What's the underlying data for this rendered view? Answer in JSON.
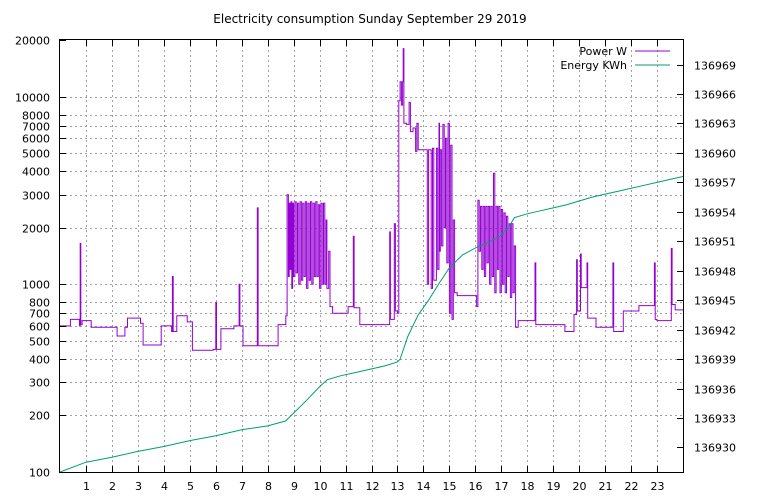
{
  "chart_data": {
    "type": "line",
    "title": "Electricity consumption Sunday September 29 2019",
    "xlabel": "",
    "ylabel": "",
    "grid": true,
    "legend_position": "top-right",
    "x_axis": {
      "range": [
        0,
        24
      ],
      "tick_values": [
        1,
        2,
        3,
        4,
        5,
        6,
        7,
        8,
        9,
        10,
        11,
        12,
        13,
        14,
        15,
        16,
        17,
        18,
        19,
        20,
        21,
        22,
        23
      ],
      "tick_labels": [
        "1",
        "2",
        "3",
        "4",
        "5",
        "6",
        "7",
        "8",
        "9",
        "10",
        "11",
        "12",
        "13",
        "14",
        "15",
        "16",
        "17",
        "18",
        "19",
        "20",
        "21",
        "22",
        "23"
      ]
    },
    "y_axis": {
      "scale": "log",
      "range": [
        100,
        20000
      ],
      "tick_values": [
        100,
        200,
        300,
        400,
        500,
        600,
        700,
        800,
        1000,
        2000,
        3000,
        4000,
        5000,
        6000,
        7000,
        8000,
        10000,
        20000
      ],
      "tick_labels": [
        "100",
        "200",
        "300",
        "400",
        "500",
        "600",
        "700",
        "800",
        "1000",
        "2000",
        "3000",
        "4000",
        "5000",
        "6000",
        "7000",
        "8000",
        "10000",
        "20000"
      ]
    },
    "y2_axis": {
      "scale": "linear",
      "range": [
        136927.5,
        136971.5
      ],
      "tick_values": [
        136930,
        136933,
        136936,
        136939,
        136942,
        136945,
        136948,
        136951,
        136954,
        136957,
        136960,
        136963,
        136966,
        136969
      ],
      "tick_labels": [
        "136930",
        "136933",
        "136936",
        "136939",
        "136942",
        "136945",
        "136948",
        "136951",
        "136954",
        "136957",
        "136960",
        "136963",
        "136966",
        "136969"
      ]
    },
    "series": [
      {
        "name": "Power W",
        "color": "#9400d3",
        "axis": "y",
        "step": true,
        "points": [
          [
            0.0,
            600
          ],
          [
            0.4,
            650
          ],
          [
            0.75,
            600
          ],
          [
            0.78,
            1650
          ],
          [
            0.8,
            610
          ],
          [
            0.85,
            640
          ],
          [
            1.2,
            590
          ],
          [
            2.2,
            530
          ],
          [
            2.5,
            590
          ],
          [
            2.6,
            660
          ],
          [
            3.1,
            620
          ],
          [
            3.2,
            475
          ],
          [
            3.9,
            600
          ],
          [
            4.3,
            560
          ],
          [
            4.33,
            1100
          ],
          [
            4.36,
            560
          ],
          [
            4.5,
            680
          ],
          [
            4.9,
            630
          ],
          [
            5.1,
            445
          ],
          [
            5.9,
            450
          ],
          [
            6.0,
            800
          ],
          [
            6.03,
            450
          ],
          [
            6.2,
            580
          ],
          [
            6.7,
            600
          ],
          [
            6.9,
            1000
          ],
          [
            6.93,
            600
          ],
          [
            7.05,
            470
          ],
          [
            7.4,
            470
          ],
          [
            7.6,
            2550
          ],
          [
            7.63,
            470
          ],
          [
            8.0,
            470
          ],
          [
            8.4,
            610
          ],
          [
            8.7,
            680
          ],
          [
            8.75,
            3000
          ],
          [
            8.8,
            1100
          ],
          [
            8.83,
            2700
          ],
          [
            8.86,
            1200
          ],
          [
            8.9,
            2750
          ],
          [
            8.93,
            950
          ],
          [
            8.96,
            2700
          ],
          [
            9.0,
            1100
          ],
          [
            9.05,
            2750
          ],
          [
            9.1,
            1150
          ],
          [
            9.15,
            2700
          ],
          [
            9.2,
            1000
          ],
          [
            9.25,
            2750
          ],
          [
            9.3,
            1050
          ],
          [
            9.35,
            2700
          ],
          [
            9.4,
            1100
          ],
          [
            9.45,
            2750
          ],
          [
            9.5,
            950
          ],
          [
            9.55,
            2700
          ],
          [
            9.6,
            1050
          ],
          [
            9.65,
            2750
          ],
          [
            9.7,
            1000
          ],
          [
            9.75,
            2700
          ],
          [
            9.8,
            1100
          ],
          [
            9.85,
            2750
          ],
          [
            9.9,
            1100
          ],
          [
            9.95,
            2650
          ],
          [
            10.0,
            950
          ],
          [
            10.05,
            2700
          ],
          [
            10.1,
            1000
          ],
          [
            10.15,
            2700
          ],
          [
            10.2,
            1000
          ],
          [
            10.25,
            2200
          ],
          [
            10.28,
            950
          ],
          [
            10.35,
            1500
          ],
          [
            10.4,
            760
          ],
          [
            10.5,
            700
          ],
          [
            11.1,
            760
          ],
          [
            11.3,
            1800
          ],
          [
            11.33,
            750
          ],
          [
            11.55,
            610
          ],
          [
            12.0,
            610
          ],
          [
            12.6,
            610
          ],
          [
            12.7,
            1900
          ],
          [
            12.73,
            650
          ],
          [
            12.88,
            2100
          ],
          [
            12.92,
            720
          ],
          [
            13.0,
            700
          ],
          [
            13.05,
            9500
          ],
          [
            13.1,
            12000
          ],
          [
            13.15,
            9000
          ],
          [
            13.2,
            12000
          ],
          [
            13.22,
            18000
          ],
          [
            13.25,
            7200
          ],
          [
            13.35,
            7100
          ],
          [
            13.45,
            9300
          ],
          [
            13.5,
            6500
          ],
          [
            13.6,
            6800
          ],
          [
            13.7,
            5100
          ],
          [
            13.75,
            7200
          ],
          [
            13.8,
            5200
          ],
          [
            14.1,
            5200
          ],
          [
            14.15,
            1000
          ],
          [
            14.2,
            5200
          ],
          [
            14.3,
            950
          ],
          [
            14.35,
            5300
          ],
          [
            14.4,
            1050
          ],
          [
            14.5,
            5300
          ],
          [
            14.55,
            1200
          ],
          [
            14.6,
            7200
          ],
          [
            14.62,
            1500
          ],
          [
            14.65,
            5200
          ],
          [
            14.7,
            1600
          ],
          [
            14.75,
            7100
          ],
          [
            14.8,
            2000
          ],
          [
            14.85,
            6000
          ],
          [
            14.9,
            1300
          ],
          [
            14.95,
            7200
          ],
          [
            15.0,
            700
          ],
          [
            15.05,
            5500
          ],
          [
            15.1,
            650
          ],
          [
            15.15,
            2200
          ],
          [
            15.2,
            900
          ],
          [
            15.3,
            870
          ],
          [
            15.8,
            870
          ],
          [
            16.05,
            760
          ],
          [
            16.1,
            2800
          ],
          [
            16.15,
            1500
          ],
          [
            16.2,
            2600
          ],
          [
            16.25,
            1200
          ],
          [
            16.3,
            2600
          ],
          [
            16.35,
            1100
          ],
          [
            16.4,
            2600
          ],
          [
            16.45,
            1300
          ],
          [
            16.5,
            2600
          ],
          [
            16.55,
            1000
          ],
          [
            16.6,
            2600
          ],
          [
            16.65,
            1100
          ],
          [
            16.7,
            3900
          ],
          [
            16.75,
            900
          ],
          [
            16.8,
            2600
          ],
          [
            16.85,
            1200
          ],
          [
            16.9,
            2600
          ],
          [
            16.95,
            900
          ],
          [
            17.0,
            2500
          ],
          [
            17.05,
            1000
          ],
          [
            17.1,
            2400
          ],
          [
            17.15,
            900
          ],
          [
            17.2,
            2300
          ],
          [
            17.25,
            1100
          ],
          [
            17.3,
            2100
          ],
          [
            17.35,
            850
          ],
          [
            17.4,
            2100
          ],
          [
            17.45,
            900
          ],
          [
            17.5,
            1600
          ],
          [
            17.55,
            590
          ],
          [
            17.65,
            640
          ],
          [
            18.0,
            640
          ],
          [
            18.3,
            1300
          ],
          [
            18.33,
            610
          ],
          [
            18.5,
            610
          ],
          [
            19.3,
            610
          ],
          [
            19.45,
            560
          ],
          [
            19.8,
            690
          ],
          [
            19.9,
            1350
          ],
          [
            19.93,
            720
          ],
          [
            20.05,
            1450
          ],
          [
            20.08,
            960
          ],
          [
            20.3,
            1300
          ],
          [
            20.33,
            660
          ],
          [
            20.65,
            590
          ],
          [
            21.3,
            1300
          ],
          [
            21.33,
            560
          ],
          [
            21.5,
            560
          ],
          [
            21.7,
            720
          ],
          [
            22.1,
            720
          ],
          [
            22.3,
            770
          ],
          [
            22.8,
            770
          ],
          [
            22.9,
            1300
          ],
          [
            22.93,
            650
          ],
          [
            23.0,
            640
          ],
          [
            23.5,
            640
          ],
          [
            23.55,
            1550
          ],
          [
            23.58,
            780
          ],
          [
            23.7,
            730
          ],
          [
            24.0,
            730
          ]
        ]
      },
      {
        "name": "Energy KWh",
        "color": "#009e73",
        "axis": "y2",
        "step": false,
        "points": [
          [
            0.0,
            136927.5
          ],
          [
            1.0,
            136928.5
          ],
          [
            2.0,
            136929.0
          ],
          [
            3.0,
            136929.6
          ],
          [
            4.0,
            136930.1
          ],
          [
            5.0,
            136930.7
          ],
          [
            6.0,
            136931.2
          ],
          [
            7.0,
            136931.8
          ],
          [
            8.0,
            136932.2
          ],
          [
            8.7,
            136932.7
          ],
          [
            9.0,
            136933.5
          ],
          [
            9.5,
            136934.8
          ],
          [
            10.0,
            136936.2
          ],
          [
            10.3,
            136936.9
          ],
          [
            10.8,
            136937.3
          ],
          [
            11.5,
            136937.7
          ],
          [
            12.0,
            136938.0
          ],
          [
            12.5,
            136938.3
          ],
          [
            13.0,
            136938.7
          ],
          [
            13.1,
            136939.0
          ],
          [
            13.4,
            136941.3
          ],
          [
            13.8,
            136943.5
          ],
          [
            14.2,
            136945.0
          ],
          [
            14.6,
            136946.7
          ],
          [
            15.0,
            136948.3
          ],
          [
            15.5,
            136949.6
          ],
          [
            16.0,
            136950.3
          ],
          [
            16.5,
            136950.9
          ],
          [
            17.0,
            136951.6
          ],
          [
            17.3,
            136952.5
          ],
          [
            17.5,
            136953.4
          ],
          [
            18.0,
            136953.8
          ],
          [
            18.5,
            136954.1
          ],
          [
            19.0,
            136954.4
          ],
          [
            19.5,
            136954.7
          ],
          [
            20.0,
            136955.1
          ],
          [
            20.5,
            136955.5
          ],
          [
            21.0,
            136955.8
          ],
          [
            21.5,
            136956.1
          ],
          [
            22.0,
            136956.4
          ],
          [
            22.5,
            136956.7
          ],
          [
            23.0,
            136957.0
          ],
          [
            23.5,
            136957.3
          ],
          [
            24.0,
            136957.6
          ]
        ]
      }
    ]
  }
}
